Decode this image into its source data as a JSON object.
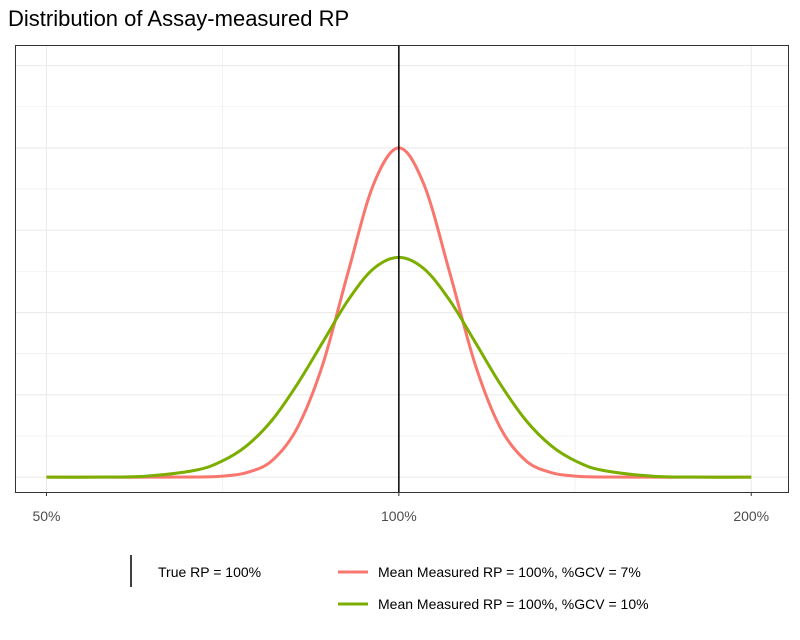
{
  "chart_data": {
    "type": "line",
    "title": "Distribution of Assay-measured RP",
    "xlabel": "",
    "ylabel": "",
    "x_scale": "log",
    "xlim": [
      47,
      215
    ],
    "ylim": [
      -0.18,
      5.25
    ],
    "x_ticks": [
      50,
      100,
      200
    ],
    "x_tick_labels": [
      "50%",
      "100%",
      "200%"
    ],
    "y_tick_labels": [],
    "grid": true,
    "legend_position": "bottom",
    "reference_line": {
      "x": 100,
      "name": "True RP = 100%",
      "color": "#000000"
    },
    "series": [
      {
        "name": "Mean Measured RP = 100%, %GCV = 7%",
        "color": "#F8766D",
        "x": [
          50,
          54.9,
          60.7,
          67.0,
          70.5,
          74.1,
          77.9,
          81.9,
          86.1,
          90.5,
          95.1,
          100,
          105.1,
          110.5,
          116.2,
          122.1,
          128.4,
          135.0,
          141.9,
          149.2,
          164.9,
          182.2,
          200
        ],
        "y": [
          0,
          0,
          0,
          0.002,
          0.012,
          0.055,
          0.2,
          0.6,
          1.37,
          2.49,
          3.55,
          4.0,
          3.55,
          2.49,
          1.37,
          0.6,
          0.2,
          0.055,
          0.012,
          0.002,
          0,
          0,
          0
        ]
      },
      {
        "name": "Mean Measured RP = 100%, %GCV = 10%",
        "color": "#7CAE00",
        "x": [
          50,
          54.9,
          60.7,
          67.0,
          70.5,
          74.1,
          77.9,
          81.9,
          86.1,
          90.5,
          95.1,
          100,
          105.1,
          110.5,
          116.2,
          122.1,
          128.4,
          135.0,
          141.9,
          149.2,
          164.9,
          182.2,
          200
        ],
        "y": [
          0,
          0.001,
          0.012,
          0.084,
          0.19,
          0.38,
          0.69,
          1.13,
          1.64,
          2.15,
          2.53,
          2.67,
          2.53,
          2.15,
          1.64,
          1.13,
          0.69,
          0.38,
          0.19,
          0.084,
          0.012,
          0.001,
          0
        ]
      }
    ]
  }
}
